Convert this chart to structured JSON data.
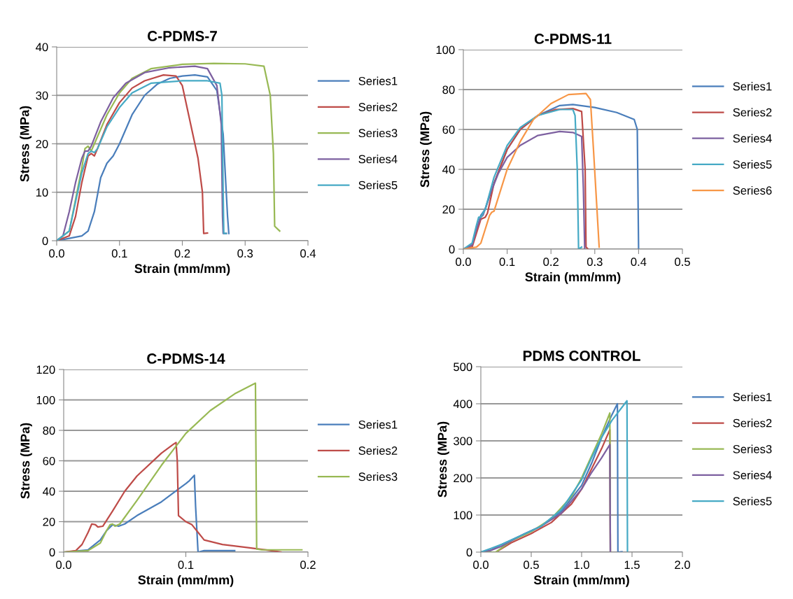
{
  "chart_data": [
    {
      "type": "line",
      "title": "C-PDMS-7",
      "xlabel": "Strain (mm/mm)",
      "ylabel": "Stress (MPa)",
      "xlim": [
        0,
        0.4
      ],
      "xticks": [
        {
          "value": 0,
          "label": "0.0"
        },
        0.1,
        0.2,
        0.3,
        0.4
      ],
      "ylim": [
        0,
        40
      ],
      "yticks": [
        0,
        10,
        20,
        30,
        40
      ],
      "grid": "y",
      "legend": "right",
      "series": [
        {
          "name": "Series1",
          "color": "#4a7ebb",
          "x": [
            0,
            0.02,
            0.04,
            0.05,
            0.06,
            0.07,
            0.08,
            0.09,
            0.1,
            0.12,
            0.14,
            0.16,
            0.18,
            0.2,
            0.22,
            0.24,
            0.255,
            0.265,
            0.272,
            0.274
          ],
          "values": [
            0,
            0.5,
            1,
            2,
            6,
            13,
            16,
            17.5,
            20,
            26,
            30,
            32.3,
            33.5,
            34,
            34.2,
            33.8,
            31,
            22,
            5,
            1.5
          ]
        },
        {
          "name": "Series2",
          "color": "#be4b48",
          "x": [
            0,
            0.02,
            0.03,
            0.04,
            0.05,
            0.055,
            0.06,
            0.065,
            0.08,
            0.1,
            0.12,
            0.14,
            0.17,
            0.19,
            0.2,
            0.21,
            0.225,
            0.232,
            0.234,
            0.24
          ],
          "values": [
            0,
            1,
            5,
            12,
            17.5,
            18,
            17.5,
            19,
            24,
            28.5,
            31.5,
            33,
            34.2,
            34,
            32,
            26,
            17,
            10,
            1.5,
            1.6
          ]
        },
        {
          "name": "Series3",
          "color": "#98b954",
          "x": [
            0,
            0.02,
            0.04,
            0.045,
            0.05,
            0.055,
            0.06,
            0.08,
            0.1,
            0.12,
            0.15,
            0.2,
            0.25,
            0.3,
            0.33,
            0.34,
            0.345,
            0.347,
            0.355
          ],
          "values": [
            0,
            2,
            15,
            19,
            19.5,
            18.5,
            20,
            26,
            30.5,
            33.5,
            35.5,
            36.4,
            36.6,
            36.5,
            36,
            30,
            18,
            3,
            2
          ]
        },
        {
          "name": "Series4",
          "color": "#7d60a0",
          "x": [
            0,
            0.01,
            0.02,
            0.03,
            0.04,
            0.045,
            0.05,
            0.055,
            0.07,
            0.09,
            0.11,
            0.14,
            0.18,
            0.22,
            0.24,
            0.255,
            0.262,
            0.264,
            0.265,
            0.27
          ],
          "values": [
            0,
            1,
            6,
            12,
            17,
            18.5,
            18.5,
            19.5,
            24.5,
            29.5,
            32.5,
            34.7,
            35.7,
            36,
            35.5,
            32,
            24,
            5,
            1.5,
            1.5
          ]
        },
        {
          "name": "Series5",
          "color": "#46aac5",
          "x": [
            0,
            0.02,
            0.03,
            0.04,
            0.05,
            0.055,
            0.06,
            0.065,
            0.08,
            0.1,
            0.12,
            0.15,
            0.2,
            0.24,
            0.26,
            0.263,
            0.265,
            0.266,
            0.27
          ],
          "values": [
            0,
            2,
            8,
            14,
            18,
            18.5,
            18.2,
            19,
            23.5,
            27.5,
            30.5,
            32.5,
            33,
            33,
            32.5,
            30,
            10,
            1.5,
            1.5
          ]
        }
      ]
    },
    {
      "type": "line",
      "title": "C-PDMS-11",
      "xlabel": "Strain (mm/mm)",
      "ylabel": "Stress (MPa)",
      "xlim": [
        0,
        0.5
      ],
      "xticks": [
        {
          "value": 0,
          "label": "0.0"
        },
        0.1,
        0.2,
        0.3,
        0.4,
        0.5
      ],
      "ylim": [
        0,
        100
      ],
      "yticks": [
        0,
        20,
        40,
        60,
        80,
        100
      ],
      "grid": "y",
      "legend": "right",
      "series": [
        {
          "name": "Series1",
          "color": "#4a7ebb",
          "x": [
            0,
            0.02,
            0.03,
            0.04,
            0.05,
            0.07,
            0.1,
            0.13,
            0.17,
            0.22,
            0.25,
            0.3,
            0.35,
            0.39,
            0.397,
            0.4
          ],
          "values": [
            0,
            2,
            10,
            17,
            20,
            33,
            50,
            60,
            67,
            72,
            72.5,
            71,
            68.5,
            65,
            60,
            0
          ]
        },
        {
          "name": "Series2",
          "color": "#be4b48",
          "x": [
            0,
            0.02,
            0.03,
            0.04,
            0.05,
            0.055,
            0.07,
            0.1,
            0.13,
            0.17,
            0.21,
            0.25,
            0.27,
            0.278,
            0.28,
            0.285
          ],
          "values": [
            0,
            1,
            8,
            15,
            16,
            18,
            33,
            50,
            60,
            67,
            70,
            70.5,
            69,
            40,
            1,
            0
          ]
        },
        {
          "name": "Series4",
          "color": "#7d60a0",
          "x": [
            0,
            0.02,
            0.03,
            0.04,
            0.045,
            0.06,
            0.08,
            0.1,
            0.13,
            0.17,
            0.22,
            0.25,
            0.27,
            0.274,
            0.277
          ],
          "values": [
            0,
            2,
            10,
            16,
            17,
            27,
            38,
            46,
            52,
            57,
            59,
            58.5,
            56.5,
            30,
            0
          ]
        },
        {
          "name": "Series5",
          "color": "#46aac5",
          "x": [
            0,
            0.02,
            0.03,
            0.035,
            0.04,
            0.05,
            0.07,
            0.1,
            0.13,
            0.17,
            0.22,
            0.25,
            0.255,
            0.26,
            0.263,
            0.27
          ],
          "values": [
            0,
            3,
            12,
            16,
            16,
            20,
            36,
            52,
            61,
            67,
            70,
            70,
            67,
            40,
            0,
            1
          ]
        },
        {
          "name": "Series6",
          "color": "#f79646",
          "x": [
            0,
            0.03,
            0.04,
            0.05,
            0.06,
            0.065,
            0.07,
            0.08,
            0.1,
            0.13,
            0.16,
            0.2,
            0.24,
            0.28,
            0.29,
            0.297,
            0.31
          ],
          "values": [
            0,
            1,
            3,
            10,
            17,
            18.5,
            19,
            26,
            40,
            54,
            65,
            73,
            77.5,
            78,
            75,
            50,
            1
          ]
        }
      ]
    },
    {
      "type": "line",
      "title": "C-PDMS-14",
      "xlabel": "Strain (mm/mm)",
      "ylabel": "Stress (MPa)",
      "xlim": [
        0,
        0.2
      ],
      "xticks": [
        {
          "value": 0,
          "label": "0.0"
        },
        0.1,
        0.2
      ],
      "ylim": [
        0,
        120
      ],
      "yticks": [
        0,
        20,
        40,
        60,
        80,
        100,
        120
      ],
      "grid": "y",
      "legend": "right",
      "series": [
        {
          "name": "Series1",
          "color": "#4a7ebb",
          "x": [
            0,
            0.02,
            0.03,
            0.035,
            0.04,
            0.045,
            0.05,
            0.06,
            0.08,
            0.1,
            0.103,
            0.107,
            0.108,
            0.11,
            0.115,
            0.14
          ],
          "values": [
            0,
            1.5,
            8,
            14,
            18,
            17,
            18.5,
            24,
            33,
            45,
            47,
            50.5,
            30,
            0,
            1,
            1
          ]
        },
        {
          "name": "Series2",
          "color": "#be4b48",
          "x": [
            0,
            0.01,
            0.015,
            0.02,
            0.023,
            0.026,
            0.028,
            0.032,
            0.04,
            0.05,
            0.06,
            0.08,
            0.09,
            0.092,
            0.093,
            0.094,
            0.1,
            0.105,
            0.11,
            0.115,
            0.13,
            0.15,
            0.17,
            0.178
          ],
          "values": [
            0,
            1,
            5,
            13,
            18.5,
            18,
            16.5,
            17,
            27,
            40,
            50,
            65,
            71,
            72,
            60,
            24,
            20,
            18,
            13,
            8,
            5,
            3,
            1,
            0
          ]
        },
        {
          "name": "Series3",
          "color": "#98b954",
          "x": [
            0,
            0.02,
            0.03,
            0.035,
            0.038,
            0.04,
            0.042,
            0.046,
            0.06,
            0.08,
            0.1,
            0.12,
            0.14,
            0.157,
            0.158,
            0.162,
            0.195
          ],
          "values": [
            0,
            1,
            6,
            14,
            18,
            18.5,
            17,
            18.5,
            34,
            57,
            78,
            93,
            104,
            111,
            2,
            1.5,
            1.5
          ]
        }
      ]
    },
    {
      "type": "line",
      "title": "PDMS CONTROL",
      "xlabel": "Strain (mm/mm)",
      "ylabel": "Stress (MPa)",
      "xlim": [
        0,
        2
      ],
      "xticks": [
        {
          "value": 0,
          "label": "0.0"
        },
        {
          "value": 0.5,
          "label": "0.5"
        },
        {
          "value": 1,
          "label": "1.0"
        },
        {
          "value": 1.5,
          "label": "1.5"
        },
        {
          "value": 2,
          "label": "2.0"
        }
      ],
      "ylim": [
        0,
        500
      ],
      "yticks": [
        0,
        100,
        200,
        300,
        400,
        500
      ],
      "grid": "y",
      "legend": "right",
      "series": [
        {
          "name": "Series1",
          "color": "#4a7ebb",
          "x": [
            0,
            0.1,
            0.2,
            0.4,
            0.6,
            0.8,
            1.0,
            1.1,
            1.2,
            1.3,
            1.355,
            1.36,
            1.4
          ],
          "values": [
            0,
            5,
            20,
            45,
            70,
            110,
            180,
            240,
            310,
            370,
            400,
            0,
            1
          ]
        },
        {
          "name": "Series2",
          "color": "#be4b48",
          "x": [
            0,
            0.15,
            0.3,
            0.5,
            0.7,
            0.9,
            1.0,
            1.1,
            1.2,
            1.28,
            1.285
          ],
          "values": [
            0,
            0,
            25,
            50,
            80,
            130,
            170,
            225,
            280,
            330,
            0
          ]
        },
        {
          "name": "Series3",
          "color": "#98b954",
          "x": [
            0,
            0.15,
            0.3,
            0.5,
            0.7,
            0.9,
            1.0,
            1.1,
            1.2,
            1.28,
            1.285
          ],
          "values": [
            0,
            0,
            30,
            55,
            90,
            150,
            200,
            260,
            320,
            375,
            0
          ]
        },
        {
          "name": "Series4",
          "color": "#7d60a0",
          "x": [
            0,
            0.1,
            0.2,
            0.4,
            0.6,
            0.8,
            1.0,
            1.1,
            1.2,
            1.28,
            1.285
          ],
          "values": [
            0,
            5,
            15,
            45,
            70,
            105,
            170,
            215,
            255,
            290,
            0
          ]
        },
        {
          "name": "Series5",
          "color": "#46aac5",
          "x": [
            0,
            0.1,
            0.2,
            0.4,
            0.6,
            0.8,
            1.0,
            1.1,
            1.2,
            1.3,
            1.45,
            1.455
          ],
          "values": [
            0,
            10,
            20,
            45,
            70,
            115,
            195,
            255,
            310,
            355,
            408,
            0
          ]
        }
      ]
    }
  ]
}
